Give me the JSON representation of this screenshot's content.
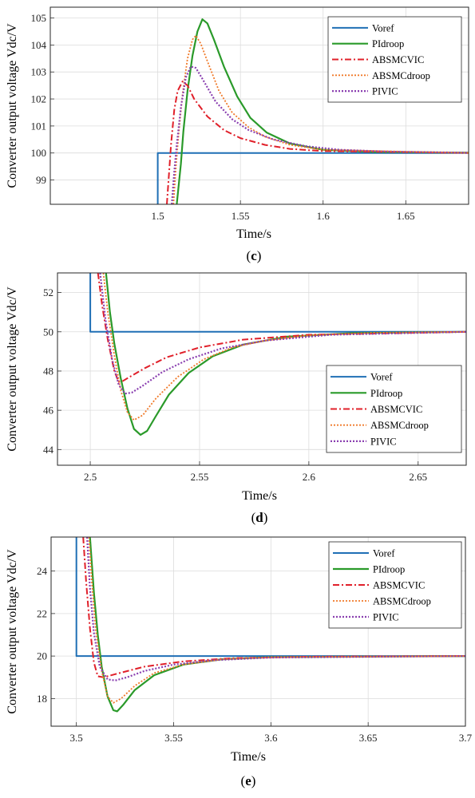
{
  "chart_data": [
    {
      "type": "line",
      "panel_tag": "c",
      "xlabel": "Time/s",
      "ylabel": "Converter output voltage Vdc/V",
      "xlim": [
        1.435,
        1.688
      ],
      "ylim": [
        98.1,
        105.4
      ],
      "xticks": [
        1.5,
        1.55,
        1.6,
        1.65
      ],
      "xtick_labels": [
        "1.5",
        "1.55",
        "1.6",
        "1.65"
      ],
      "yticks": [
        99,
        100,
        101,
        102,
        103,
        104,
        105
      ],
      "ytick_labels": [
        "99",
        "100",
        "101",
        "102",
        "103",
        "104",
        "105"
      ],
      "grid": true,
      "legend": "top-right",
      "series": [
        {
          "name": "Voref",
          "color": "#1f6fb5",
          "dash": "solid",
          "width": 2,
          "points": [
            [
              1.5,
              98.1
            ],
            [
              1.5,
              100
            ],
            [
              1.688,
              100
            ]
          ]
        },
        {
          "name": "PIdroop",
          "color": "#2a9a2a",
          "dash": "solid",
          "width": 2.2,
          "points": [
            [
              1.5115,
              98.1
            ],
            [
              1.514,
              99.6
            ],
            [
              1.5155,
              100.8
            ],
            [
              1.518,
              102.3
            ],
            [
              1.521,
              103.6
            ],
            [
              1.524,
              104.5
            ],
            [
              1.527,
              104.95
            ],
            [
              1.53,
              104.8
            ],
            [
              1.534,
              104.2
            ],
            [
              1.54,
              103.2
            ],
            [
              1.548,
              102.1
            ],
            [
              1.556,
              101.3
            ],
            [
              1.566,
              100.75
            ],
            [
              1.58,
              100.35
            ],
            [
              1.6,
              100.12
            ],
            [
              1.63,
              100.04
            ],
            [
              1.688,
              100.01
            ]
          ]
        },
        {
          "name": "ABSMCVIC",
          "color": "#e0202a",
          "dash": "8,3,2,3",
          "width": 2,
          "points": [
            [
              1.5055,
              98.1
            ],
            [
              1.507,
              99.4
            ],
            [
              1.508,
              100.3
            ],
            [
              1.51,
              101.6
            ],
            [
              1.512,
              102.3
            ],
            [
              1.515,
              102.65
            ],
            [
              1.518,
              102.5
            ],
            [
              1.522,
              102.0
            ],
            [
              1.53,
              101.35
            ],
            [
              1.54,
              100.85
            ],
            [
              1.55,
              100.55
            ],
            [
              1.565,
              100.3
            ],
            [
              1.58,
              100.15
            ],
            [
              1.6,
              100.07
            ],
            [
              1.688,
              100.0
            ]
          ]
        },
        {
          "name": "ABSMCdroop",
          "color": "#f07a2a",
          "dash": "2,2",
          "width": 1.8,
          "points": [
            [
              1.5095,
              98.1
            ],
            [
              1.511,
              99.5
            ],
            [
              1.5125,
              100.6
            ],
            [
              1.515,
              102.2
            ],
            [
              1.518,
              103.5
            ],
            [
              1.521,
              104.2
            ],
            [
              1.523,
              104.35
            ],
            [
              1.526,
              104.05
            ],
            [
              1.53,
              103.4
            ],
            [
              1.537,
              102.3
            ],
            [
              1.545,
              101.5
            ],
            [
              1.555,
              100.95
            ],
            [
              1.565,
              100.6
            ],
            [
              1.58,
              100.3
            ],
            [
              1.6,
              100.12
            ],
            [
              1.688,
              100.0
            ]
          ]
        },
        {
          "name": "PIVIC",
          "color": "#8a3fb0",
          "dash": "2,2",
          "width": 2.2,
          "points": [
            [
              1.5085,
              98.1
            ],
            [
              1.51,
              99.3
            ],
            [
              1.5115,
              100.3
            ],
            [
              1.514,
              101.7
            ],
            [
              1.517,
              102.8
            ],
            [
              1.52,
              103.2
            ],
            [
              1.523,
              103.15
            ],
            [
              1.527,
              102.75
            ],
            [
              1.535,
              101.9
            ],
            [
              1.545,
              101.25
            ],
            [
              1.555,
              100.85
            ],
            [
              1.57,
              100.5
            ],
            [
              1.59,
              100.25
            ],
            [
              1.61,
              100.12
            ],
            [
              1.64,
              100.05
            ],
            [
              1.688,
              100.01
            ]
          ]
        }
      ],
      "legend_entries": [
        "Voref",
        "PIdroop",
        "ABSMCVIC",
        "ABSMCdroop",
        "PIVIC"
      ]
    },
    {
      "type": "line",
      "panel_tag": "d",
      "xlabel": "Time/s",
      "ylabel": "Converter output voltage Vdc/V",
      "xlim": [
        2.485,
        2.672
      ],
      "ylim": [
        43.2,
        53.0
      ],
      "xticks": [
        2.5,
        2.55,
        2.6,
        2.65
      ],
      "xtick_labels": [
        "2.5",
        "2.55",
        "2.6",
        "2.65"
      ],
      "yticks": [
        44,
        46,
        48,
        50,
        52
      ],
      "ytick_labels": [
        "44",
        "46",
        "48",
        "50",
        "52"
      ],
      "grid": true,
      "legend": "bottom-right",
      "series": [
        {
          "name": "Voref",
          "color": "#1f6fb5",
          "dash": "solid",
          "width": 2,
          "points": [
            [
              2.5,
              53.0
            ],
            [
              2.5,
              50
            ],
            [
              2.672,
              50
            ]
          ]
        },
        {
          "name": "PIdroop",
          "color": "#2a9a2a",
          "dash": "solid",
          "width": 2.2,
          "points": [
            [
              2.5072,
              53.0
            ],
            [
              2.509,
              51.0
            ],
            [
              2.511,
              49.4
            ],
            [
              2.514,
              47.6
            ],
            [
              2.517,
              46.1
            ],
            [
              2.52,
              45.05
            ],
            [
              2.523,
              44.75
            ],
            [
              2.526,
              44.95
            ],
            [
              2.53,
              45.7
            ],
            [
              2.536,
              46.8
            ],
            [
              2.545,
              47.9
            ],
            [
              2.556,
              48.75
            ],
            [
              2.57,
              49.35
            ],
            [
              2.59,
              49.75
            ],
            [
              2.62,
              49.93
            ],
            [
              2.672,
              50.0
            ]
          ]
        },
        {
          "name": "ABSMCVIC",
          "color": "#e0202a",
          "dash": "8,3,2,3",
          "width": 2,
          "points": [
            [
              2.5035,
              53.0
            ],
            [
              2.5055,
              51.3
            ],
            [
              2.508,
              49.6
            ],
            [
              2.511,
              48.0
            ],
            [
              2.513,
              47.45
            ],
            [
              2.515,
              47.5
            ],
            [
              2.518,
              47.7
            ],
            [
              2.525,
              48.15
            ],
            [
              2.535,
              48.7
            ],
            [
              2.55,
              49.2
            ],
            [
              2.57,
              49.6
            ],
            [
              2.6,
              49.85
            ],
            [
              2.672,
              50.0
            ]
          ]
        },
        {
          "name": "ABSMCdroop",
          "color": "#f07a2a",
          "dash": "2,2",
          "width": 1.8,
          "points": [
            [
              2.506,
              53.0
            ],
            [
              2.508,
              51.0
            ],
            [
              2.511,
              48.8
            ],
            [
              2.514,
              47.0
            ],
            [
              2.517,
              45.9
            ],
            [
              2.52,
              45.5
            ],
            [
              2.524,
              45.75
            ],
            [
              2.53,
              46.6
            ],
            [
              2.54,
              47.7
            ],
            [
              2.552,
              48.6
            ],
            [
              2.565,
              49.2
            ],
            [
              2.58,
              49.55
            ],
            [
              2.6,
              49.82
            ],
            [
              2.63,
              49.95
            ],
            [
              2.672,
              50.0
            ]
          ]
        },
        {
          "name": "PIVIC",
          "color": "#8a3fb0",
          "dash": "2,2",
          "width": 2.2,
          "points": [
            [
              2.5045,
              53.0
            ],
            [
              2.507,
              50.6
            ],
            [
              2.51,
              48.6
            ],
            [
              2.513,
              47.3
            ],
            [
              2.516,
              46.85
            ],
            [
              2.519,
              46.9
            ],
            [
              2.524,
              47.25
            ],
            [
              2.533,
              47.95
            ],
            [
              2.545,
              48.6
            ],
            [
              2.56,
              49.15
            ],
            [
              2.58,
              49.55
            ],
            [
              2.61,
              49.85
            ],
            [
              2.672,
              50.0
            ]
          ]
        }
      ],
      "legend_entries": [
        "Voref",
        "PIdroop",
        "ABSMCVIC",
        "ABSMCdroop",
        "PIVIC"
      ]
    },
    {
      "type": "line",
      "panel_tag": "e",
      "xlabel": "Time/s",
      "ylabel": "Converter output voltage Vdc/V",
      "xlim": [
        3.487,
        3.7
      ],
      "ylim": [
        16.7,
        25.6
      ],
      "xticks": [
        3.5,
        3.55,
        3.6,
        3.65,
        3.7
      ],
      "xtick_labels": [
        "3.5",
        "3.55",
        "3.6",
        "3.65",
        "3.7"
      ],
      "yticks": [
        18,
        20,
        22,
        24
      ],
      "ytick_labels": [
        "18",
        "20",
        "22",
        "24"
      ],
      "grid": true,
      "legend": "top-right",
      "series": [
        {
          "name": "Voref",
          "color": "#1f6fb5",
          "dash": "solid",
          "width": 2,
          "points": [
            [
              3.5,
              25.6
            ],
            [
              3.5,
              20
            ],
            [
              3.7,
              20
            ]
          ]
        },
        {
          "name": "PIdroop",
          "color": "#2a9a2a",
          "dash": "solid",
          "width": 2.2,
          "points": [
            [
              3.507,
              25.6
            ],
            [
              3.509,
              23.0
            ],
            [
              3.511,
              21.0
            ],
            [
              3.513,
              19.5
            ],
            [
              3.516,
              18.1
            ],
            [
              3.519,
              17.45
            ],
            [
              3.521,
              17.4
            ],
            [
              3.524,
              17.7
            ],
            [
              3.53,
              18.4
            ],
            [
              3.54,
              19.1
            ],
            [
              3.555,
              19.6
            ],
            [
              3.575,
              19.85
            ],
            [
              3.6,
              19.95
            ],
            [
              3.7,
              20.0
            ]
          ]
        },
        {
          "name": "ABSMCVIC",
          "color": "#e0202a",
          "dash": "8,3,2,3",
          "width": 2,
          "points": [
            [
              3.5035,
              25.6
            ],
            [
              3.505,
              23.5
            ],
            [
              3.507,
              21.3
            ],
            [
              3.509,
              19.7
            ],
            [
              3.511,
              19.05
            ],
            [
              3.514,
              19.0
            ],
            [
              3.52,
              19.15
            ],
            [
              3.535,
              19.5
            ],
            [
              3.555,
              19.75
            ],
            [
              3.58,
              19.9
            ],
            [
              3.62,
              19.97
            ],
            [
              3.7,
              20.0
            ]
          ]
        },
        {
          "name": "ABSMCdroop",
          "color": "#f07a2a",
          "dash": "2,2",
          "width": 1.8,
          "points": [
            [
              3.5065,
              25.6
            ],
            [
              3.508,
              23.4
            ],
            [
              3.51,
              21.2
            ],
            [
              3.513,
              19.3
            ],
            [
              3.516,
              18.1
            ],
            [
              3.519,
              17.8
            ],
            [
              3.523,
              18.0
            ],
            [
              3.53,
              18.6
            ],
            [
              3.54,
              19.2
            ],
            [
              3.555,
              19.6
            ],
            [
              3.575,
              19.85
            ],
            [
              3.6,
              19.95
            ],
            [
              3.7,
              20.0
            ]
          ]
        },
        {
          "name": "PIVIC",
          "color": "#8a3fb0",
          "dash": "2,2",
          "width": 2.2,
          "points": [
            [
              3.5055,
              25.6
            ],
            [
              3.507,
              23.2
            ],
            [
              3.509,
              21.1
            ],
            [
              3.512,
              19.5
            ],
            [
              3.516,
              18.9
            ],
            [
              3.52,
              18.85
            ],
            [
              3.526,
              19.0
            ],
            [
              3.535,
              19.3
            ],
            [
              3.55,
              19.6
            ],
            [
              3.57,
              19.8
            ],
            [
              3.6,
              19.93
            ],
            [
              3.7,
              20.0
            ]
          ]
        }
      ],
      "legend_entries": [
        "Voref",
        "PIdroop",
        "ABSMCVIC",
        "ABSMCdroop",
        "PIVIC"
      ]
    }
  ]
}
